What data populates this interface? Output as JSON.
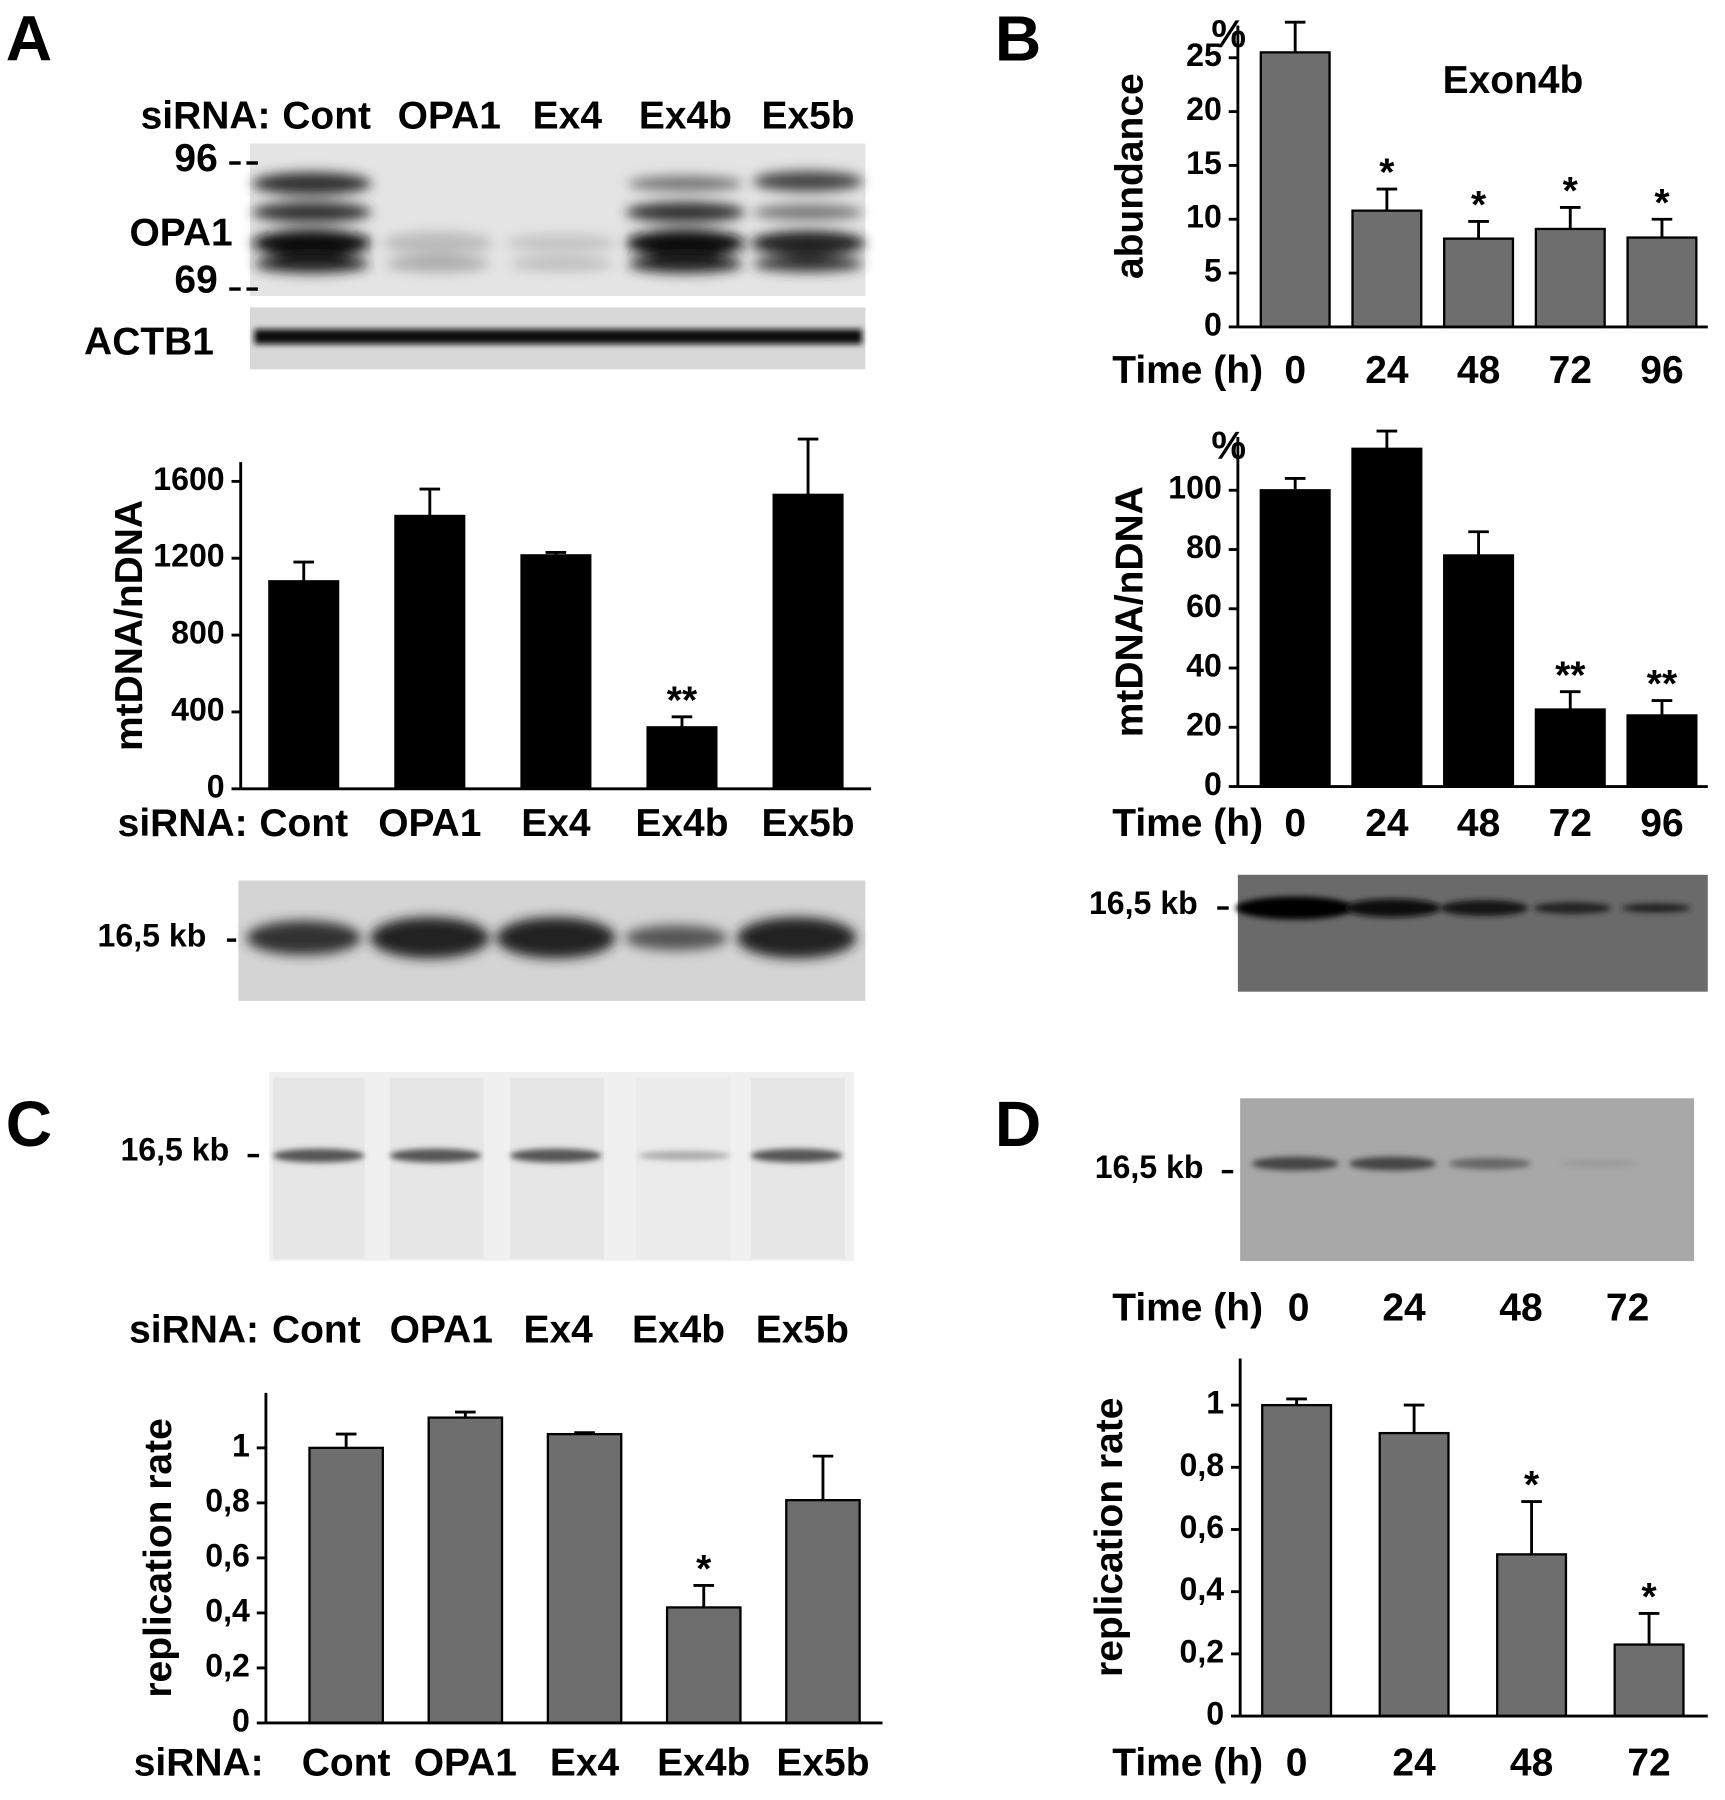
{
  "panel_labels": [
    "A",
    "B",
    "C",
    "D"
  ],
  "blots": {
    "a_western": {
      "lanes_label": "siRNA:",
      "lanes": [
        "Cont",
        "OPA1",
        "Ex4",
        "Ex4b",
        "Ex5b"
      ],
      "markers": [
        "96",
        "69"
      ],
      "protein": "OPA1",
      "loading": "ACTB1"
    },
    "a_southern": {
      "band": "16,5 kb"
    },
    "b_southern": {
      "band": "16,5 kb"
    },
    "c_blot": {
      "band": "16,5 kb",
      "lanes_label": "siRNA:",
      "lanes": [
        "Cont",
        "OPA1",
        "Ex4",
        "Ex4b",
        "Ex5b"
      ]
    },
    "d_blot": {
      "band": "16,5 kb",
      "lanes_label": "Time (h)",
      "lanes": [
        "0",
        "24",
        "48",
        "72"
      ]
    }
  },
  "chart_data": [
    {
      "type": "bar",
      "y_label": "mtDNA/nDNA",
      "x_label": "siRNA:",
      "categories": [
        "Cont",
        "OPA1",
        "Ex4",
        "Ex4b",
        "Ex5b"
      ],
      "values": [
        1080,
        1420,
        1215,
        320,
        1530
      ],
      "errors": [
        100,
        140,
        15,
        55,
        290
      ],
      "color": "#000000",
      "ylim": [
        0,
        1700
      ],
      "yticks": [
        0,
        400,
        800,
        1200,
        1600
      ],
      "annotations": [
        {
          "category": "Ex4b",
          "text": "**"
        }
      ]
    },
    {
      "type": "bar",
      "title": "Exon4b",
      "y_label": "abundance",
      "y_unit": "%",
      "x_label": "Time (h)",
      "categories": [
        "0",
        "24",
        "48",
        "72",
        "96"
      ],
      "values": [
        25.5,
        10.8,
        8.2,
        9.1,
        8.3
      ],
      "errors": [
        2.8,
        2.0,
        1.6,
        2.0,
        1.7
      ],
      "color": "#6e6e6e",
      "ylim": [
        0,
        28
      ],
      "yticks": [
        0,
        5,
        10,
        15,
        20,
        25
      ],
      "annotations": [
        {
          "category": "24",
          "text": "*"
        },
        {
          "category": "48",
          "text": "*"
        },
        {
          "category": "72",
          "text": "*"
        },
        {
          "category": "96",
          "text": "*"
        }
      ]
    },
    {
      "type": "bar",
      "y_label": "mtDNA/nDNA",
      "y_unit": "%",
      "x_label": "Time (h)",
      "categories": [
        "0",
        "24",
        "48",
        "72",
        "96"
      ],
      "values": [
        100,
        114,
        78,
        26,
        24
      ],
      "errors": [
        4,
        6,
        8,
        6,
        5
      ],
      "color": "#000000",
      "ylim": [
        0,
        118
      ],
      "yticks": [
        0,
        20,
        40,
        60,
        80,
        100
      ],
      "annotations": [
        {
          "category": "72",
          "text": "**"
        },
        {
          "category": "96",
          "text": "**"
        }
      ]
    },
    {
      "type": "bar",
      "y_label": "replication rate",
      "x_label": "siRNA:",
      "categories": [
        "Cont",
        "OPA1",
        "Ex4",
        "Ex4b",
        "Ex5b"
      ],
      "values": [
        1.0,
        1.11,
        1.05,
        0.42,
        0.81
      ],
      "errors": [
        0.05,
        0.02,
        0.005,
        0.08,
        0.16
      ],
      "color": "#6e6e6e",
      "ylim": [
        0,
        1.2
      ],
      "yticks": [
        0,
        {
          "value": 0.2,
          "label": "0,2"
        },
        {
          "value": 0.4,
          "label": "0,4"
        },
        {
          "value": 0.6,
          "label": "0,6"
        },
        {
          "value": 0.8,
          "label": "0,8"
        },
        1
      ],
      "annotations": [
        {
          "category": "Ex4b",
          "text": "*"
        }
      ]
    },
    {
      "type": "bar",
      "y_label": "replication rate",
      "x_label": "Time (h)",
      "categories": [
        "0",
        "24",
        "48",
        "72"
      ],
      "values": [
        1.0,
        0.91,
        0.52,
        0.23
      ],
      "errors": [
        0.02,
        0.09,
        0.17,
        0.1
      ],
      "color": "#6e6e6e",
      "ylim": [
        0,
        1.15
      ],
      "yticks": [
        0,
        {
          "value": 0.2,
          "label": "0,2"
        },
        {
          "value": 0.4,
          "label": "0,4"
        },
        {
          "value": 0.6,
          "label": "0,6"
        },
        {
          "value": 0.8,
          "label": "0,8"
        },
        1
      ],
      "annotations": [
        {
          "category": "48",
          "text": "*"
        },
        {
          "category": "72",
          "text": "*"
        }
      ]
    }
  ]
}
